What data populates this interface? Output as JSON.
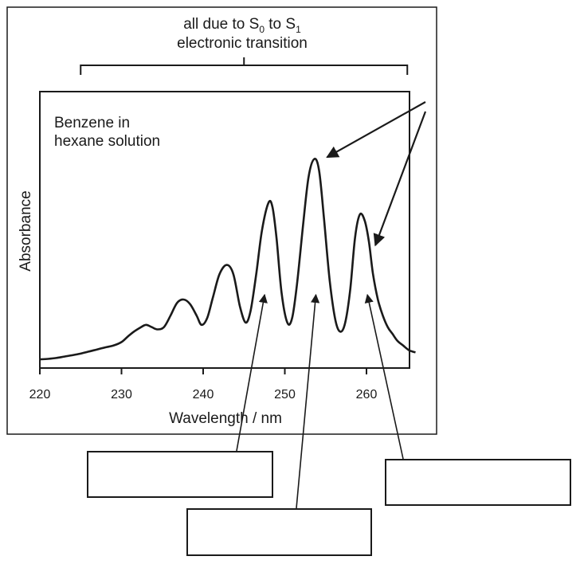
{
  "chart_data": {
    "type": "line",
    "header_line1_prefix": "all due to S",
    "header_sub0": "0",
    "header_mid": " to S",
    "header_sub1": "1",
    "header_line2": "electronic transition",
    "inset_label_line1": "Benzene in",
    "inset_label_line2": "hexane solution",
    "xlabel": "Wavelength / nm",
    "ylabel": "Absorbance",
    "xlim": [
      220,
      266
    ],
    "ylim": [
      0,
      1
    ],
    "xticks": [
      "220",
      "230",
      "240",
      "250",
      "260"
    ],
    "bracket_range": [
      225,
      265
    ],
    "series": [
      {
        "x": [
          220,
          221,
          222,
          223,
          224,
          225,
          226,
          227,
          228,
          229,
          230,
          230.8,
          231.5,
          232.3,
          233,
          233.7,
          234.4,
          235.2,
          236,
          236.8,
          237.6,
          238.4,
          239.2,
          239.8,
          240.5,
          241.2,
          242,
          242.9,
          243.7,
          244.5,
          245.2,
          245.8,
          246.5,
          247.2,
          248,
          248.5,
          249,
          249.6,
          250.3,
          250.9,
          251.5,
          252.2,
          252.9,
          253.6,
          254.2,
          254.8,
          255.5,
          256.2,
          256.8,
          257.4,
          258,
          258.6,
          259.2,
          259.8,
          260.3,
          260.8,
          261.4,
          262,
          262.6,
          263.2,
          263.8,
          264.5,
          265.2,
          266
        ],
        "y": [
          0.01,
          0.012,
          0.016,
          0.022,
          0.028,
          0.035,
          0.044,
          0.053,
          0.062,
          0.07,
          0.085,
          0.11,
          0.13,
          0.148,
          0.16,
          0.15,
          0.14,
          0.15,
          0.2,
          0.255,
          0.27,
          0.25,
          0.2,
          0.16,
          0.19,
          0.28,
          0.38,
          0.42,
          0.38,
          0.24,
          0.17,
          0.22,
          0.38,
          0.57,
          0.69,
          0.67,
          0.53,
          0.3,
          0.17,
          0.19,
          0.34,
          0.58,
          0.8,
          0.88,
          0.83,
          0.62,
          0.35,
          0.18,
          0.13,
          0.17,
          0.31,
          0.54,
          0.64,
          0.61,
          0.52,
          0.38,
          0.27,
          0.2,
          0.15,
          0.12,
          0.09,
          0.07,
          0.05,
          0.04
        ]
      }
    ],
    "pointers": [
      {
        "from": [
          0,
          0
        ],
        "to_peak_x": 254
      },
      {
        "from": [
          0,
          0
        ],
        "to_peak_x": 260.5
      }
    ],
    "answer_boxes": [
      {
        "points_to_x": 248.5
      },
      {
        "points_to_x": 254
      },
      {
        "points_to_x": 260.5
      }
    ]
  }
}
